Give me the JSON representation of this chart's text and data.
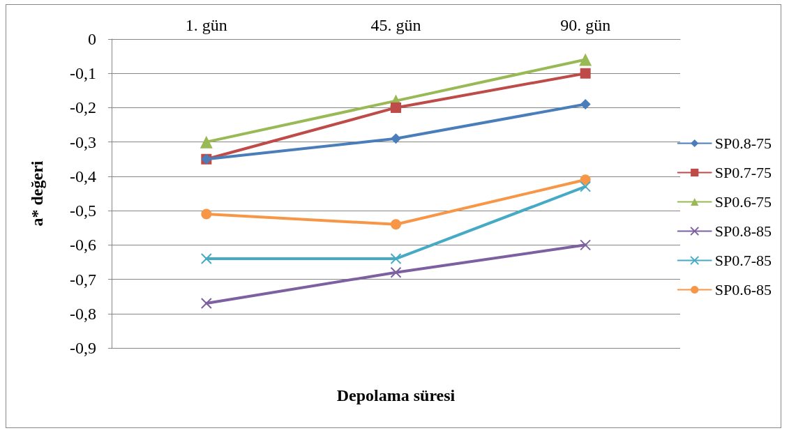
{
  "chart_data": {
    "type": "line",
    "xlabel": "Depolama süresi",
    "ylabel": "a* değeri",
    "categories": [
      "1. gün",
      "45. gün",
      "90. gün"
    ],
    "series": [
      {
        "name": "SP0.8-75",
        "color": "#4a7ebb",
        "marker": "diamond",
        "values": [
          -0.35,
          -0.29,
          -0.19
        ]
      },
      {
        "name": "SP0.7-75",
        "color": "#be4b48",
        "marker": "square",
        "values": [
          -0.35,
          -0.2,
          -0.1
        ]
      },
      {
        "name": "SP0.6-75",
        "color": "#98b954",
        "marker": "triangle",
        "values": [
          -0.3,
          -0.18,
          -0.06
        ]
      },
      {
        "name": "SP0.8-85",
        "color": "#7d60a0",
        "marker": "cross",
        "values": [
          -0.77,
          -0.68,
          -0.6
        ]
      },
      {
        "name": "SP0.7-85",
        "color": "#46aac5",
        "marker": "cross",
        "values": [
          -0.64,
          -0.64,
          -0.43
        ]
      },
      {
        "name": "SP0.6-85",
        "color": "#f79646",
        "marker": "circle",
        "values": [
          -0.51,
          -0.54,
          -0.41
        ]
      }
    ],
    "ylim": [
      -0.9,
      0
    ],
    "yticks": [
      {
        "value": 0,
        "label": "0"
      },
      {
        "value": -0.1,
        "label": "-0,1"
      },
      {
        "value": -0.2,
        "label": "-0,2"
      },
      {
        "value": -0.3,
        "label": "-0,3"
      },
      {
        "value": -0.4,
        "label": "-0,4"
      },
      {
        "value": -0.5,
        "label": "-0,5"
      },
      {
        "value": -0.6,
        "label": "-0,6"
      },
      {
        "value": -0.7,
        "label": "-0,7"
      },
      {
        "value": -0.8,
        "label": "-0,8"
      },
      {
        "value": -0.9,
        "label": "-0,9"
      }
    ],
    "grid": "y",
    "legend": "right",
    "line_style": "solid"
  }
}
